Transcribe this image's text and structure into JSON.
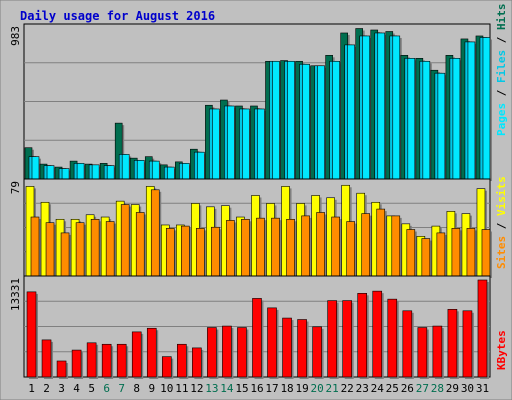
{
  "chart_data": {
    "type": "bar",
    "title": "Daily usage for August 2016",
    "categories": [
      "1",
      "2",
      "3",
      "4",
      "5",
      "6",
      "7",
      "8",
      "9",
      "10",
      "11",
      "12",
      "13",
      "14",
      "15",
      "16",
      "17",
      "18",
      "19",
      "20",
      "21",
      "22",
      "23",
      "24",
      "25",
      "26",
      "27",
      "28",
      "29",
      "30",
      "31"
    ],
    "weekend_days": [
      "6",
      "7",
      "13",
      "14",
      "20",
      "21",
      "27",
      "28"
    ],
    "colors": {
      "background": "#c0c0c0",
      "plot_background": "#c0c0c0",
      "hits": "#006e4f",
      "files": "#00c8e6",
      "pages": "#00e8ff",
      "visits": "#ffff00",
      "sites": "#ff8c00",
      "kbytes": "#ff0000",
      "weekday_label": "#000000",
      "weekend_label": "#006e4f",
      "title": "#0000cc"
    },
    "panels": [
      {
        "name": "hits-files-pages",
        "ymax_label": "983",
        "legend": [
          "Pages",
          "Files",
          "Hits"
        ],
        "series": [
          {
            "name": "Hits",
            "values": [
              210,
              100,
              80,
              120,
              100,
              105,
              375,
              140,
              150,
              95,
              115,
              200,
              495,
              530,
              490,
              490,
              790,
              795,
              790,
              760,
              830,
              980,
              1010,
              1000,
              990,
              830,
              810,
              730,
              830,
              940,
              960
            ]
          },
          {
            "name": "Files",
            "values": [
              150,
              90,
              70,
              105,
              95,
              90,
              165,
              125,
              120,
              80,
              105,
              180,
              470,
              490,
              470,
              470,
              790,
              790,
              770,
              760,
              790,
              900,
              960,
              980,
              960,
              810,
              790,
              710,
              810,
              920,
              950
            ]
          },
          {
            "name": "Pages",
            "values": [
              150,
              90,
              70,
              105,
              95,
              90,
              165,
              125,
              120,
              80,
              105,
              180,
              470,
              490,
              470,
              470,
              790,
              790,
              770,
              760,
              790,
              900,
              960,
              980,
              960,
              810,
              790,
              710,
              810,
              920,
              950
            ]
          }
        ]
      },
      {
        "name": "visits-sites",
        "ymax_label": "79",
        "legend": [
          "Sites",
          "Visits"
        ],
        "series": [
          {
            "name": "Visits",
            "values": [
              79,
              65,
              50,
              50,
              54,
              52,
              66,
              63,
              79,
              45,
              45,
              64,
              61,
              62,
              52,
              71,
              64,
              79,
              64,
              71,
              69,
              80,
              73,
              65,
              53,
              46,
              35,
              44,
              57,
              55,
              77
            ]
          },
          {
            "name": "Sites",
            "values": [
              52,
              47,
              38,
              47,
              50,
              48,
              63,
              56,
              76,
              42,
              44,
              42,
              43,
              49,
              50,
              51,
              51,
              50,
              53,
              56,
              52,
              48,
              55,
              59,
              53,
              41,
              33,
              38,
              42,
              42,
              41
            ]
          }
        ]
      },
      {
        "name": "kbytes",
        "ymax_label": "13331",
        "legend": [
          "KBytes"
        ],
        "series": [
          {
            "name": "KBytes",
            "values": [
              11700,
              5100,
              2200,
              3700,
              4700,
              4500,
              4500,
              6200,
              6700,
              2800,
              4500,
              4000,
              6800,
              7000,
              6800,
              10800,
              9500,
              8100,
              7900,
              6900,
              10500,
              10500,
              11500,
              11800,
              10700,
              9100,
              6800,
              7000,
              9300,
              9100,
              13331
            ]
          }
        ]
      }
    ]
  }
}
